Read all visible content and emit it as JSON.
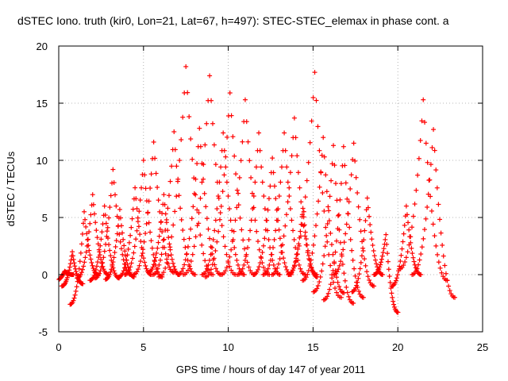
{
  "chart_data": {
    "type": "scatter",
    "title": "dSTEC Iono. truth (kir0, Lon=21, Lat=67, h=497): STEC-STEC_elemax in phase cont. a",
    "xlabel": "GPS time / hours of day 147 of year 2011",
    "ylabel": "dSTEC  / TECUs",
    "xlim": [
      0,
      25
    ],
    "ylim": [
      -5,
      20
    ],
    "xticks": [
      0,
      5,
      10,
      15,
      20,
      25
    ],
    "yticks": [
      -5,
      0,
      5,
      10,
      15,
      20
    ],
    "xtick_labels": [
      "0",
      "5",
      "10",
      "15",
      "20",
      "25"
    ],
    "ytick_labels": [
      "-5",
      "0",
      "5",
      "10",
      "15",
      "20"
    ],
    "grid": true,
    "marker": "+",
    "color": "#ff0000",
    "series": [
      {
        "peaks": [
          {
            "t": 0.35,
            "peak": 0.3,
            "start": -0.5,
            "end": 0.0
          },
          {
            "t": 0.8,
            "peak": 2.0,
            "start": -1.0,
            "end": -0.8
          },
          {
            "t": 1.5,
            "peak": 5.5,
            "start": -2.6,
            "end": 0.0
          },
          {
            "t": 2.0,
            "peak": 7.0,
            "start": -0.3,
            "end": 0.0
          },
          {
            "t": 2.7,
            "peak": 6.0,
            "start": -0.5,
            "end": -0.3
          },
          {
            "t": 3.2,
            "peak": 9.2,
            "start": -0.3,
            "end": 0.0
          },
          {
            "t": 3.6,
            "peak": 5.7,
            "start": -0.4,
            "end": -0.2
          },
          {
            "t": 4.5,
            "peak": 7.6,
            "start": -0.2,
            "end": 0.0
          },
          {
            "t": 5.0,
            "peak": 10.0,
            "start": 0.0,
            "end": -0.2
          },
          {
            "t": 5.6,
            "peak": 11.6,
            "start": 0.0,
            "end": 0.2
          },
          {
            "t": 6.2,
            "peak": 7.0,
            "start": 0.2,
            "end": 0.0
          },
          {
            "t": 6.8,
            "peak": 12.5,
            "start": 0.0,
            "end": 0.0
          },
          {
            "t": 7.5,
            "peak": 18.2,
            "start": -0.2,
            "end": 0.0
          },
          {
            "t": 8.3,
            "peak": 12.8,
            "start": 0.0,
            "end": 0.0
          },
          {
            "t": 8.9,
            "peak": 17.4,
            "start": 0.0,
            "end": 0.0
          },
          {
            "t": 9.7,
            "peak": 12.4,
            "start": 0.0,
            "end": 0.0
          },
          {
            "t": 10.1,
            "peak": 15.9,
            "start": -0.2,
            "end": 0.0
          },
          {
            "t": 11.0,
            "peak": 15.3,
            "start": 0.0,
            "end": 0.0
          },
          {
            "t": 11.8,
            "peak": 12.4,
            "start": 0.0,
            "end": 0.0
          },
          {
            "t": 12.6,
            "peak": 10.2,
            "start": 0.0,
            "end": 0.0
          },
          {
            "t": 13.3,
            "peak": 12.4,
            "start": 0.0,
            "end": 0.0
          },
          {
            "t": 13.9,
            "peak": 13.7,
            "start": 0.0,
            "end": 0.0
          },
          {
            "t": 14.4,
            "peak": 5.8,
            "start": 0.0,
            "end": -0.2
          },
          {
            "t": 15.1,
            "peak": 17.7,
            "start": 0.0,
            "end": -2.0
          },
          {
            "t": 15.6,
            "peak": 12.0,
            "start": -0.5,
            "end": -1.6
          },
          {
            "t": 16.2,
            "peak": 11.3,
            "start": -1.5,
            "end": -2.5
          },
          {
            "t": 16.8,
            "peak": 11.2,
            "start": -2.2,
            "end": -2.0
          },
          {
            "t": 17.4,
            "peak": 11.5,
            "start": 0.0,
            "end": -1.0
          },
          {
            "t": 18.2,
            "peak": 6.7,
            "start": -1.5,
            "end": 0.0
          },
          {
            "t": 19.3,
            "peak": 3.5,
            "start": 0.0,
            "end": -3.3
          },
          {
            "t": 20.5,
            "peak": 6.0,
            "start": -1.0,
            "end": 0.0
          },
          {
            "t": 21.5,
            "peak": 15.3,
            "start": 0.5,
            "end": -0.5
          },
          {
            "t": 22.1,
            "peak": 12.7,
            "start": 0.0,
            "end": -2.0
          }
        ]
      }
    ]
  }
}
